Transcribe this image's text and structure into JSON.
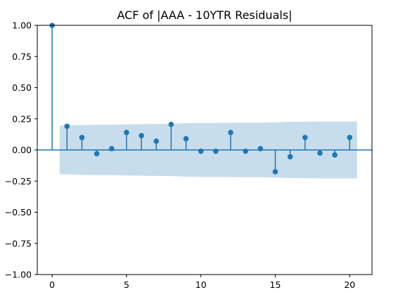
{
  "chart_data": {
    "type": "stem",
    "title": "ACF of |AAA - 10YTR Residuals|",
    "xlabel": "",
    "ylabel": "",
    "xlim": [
      -1,
      21.5
    ],
    "ylim": [
      -1.0,
      1.0
    ],
    "x_ticks": [
      0,
      5,
      10,
      15,
      20
    ],
    "y_ticks": [
      -1.0,
      -0.75,
      -0.5,
      -0.25,
      0.0,
      0.25,
      0.5,
      0.75,
      1.0
    ],
    "x_tick_labels": [
      "0",
      "5",
      "10",
      "15",
      "20"
    ],
    "y_tick_labels": [
      "−1.00",
      "−0.75",
      "−0.50",
      "−0.25",
      "0.00",
      "0.25",
      "0.50",
      "0.75",
      "1.00"
    ],
    "lags": [
      0,
      1,
      2,
      3,
      4,
      5,
      6,
      7,
      8,
      9,
      10,
      11,
      12,
      13,
      14,
      15,
      16,
      17,
      18,
      19,
      20
    ],
    "values": [
      1.0,
      0.19,
      0.1,
      -0.03,
      0.01,
      0.14,
      0.115,
      0.07,
      0.205,
      0.09,
      -0.01,
      -0.01,
      0.14,
      -0.01,
      0.01,
      -0.175,
      -0.055,
      0.1,
      -0.025,
      -0.04,
      0.1
    ],
    "confidence_band": {
      "lags": [
        0.5,
        1,
        2,
        3,
        4,
        5,
        6,
        7,
        8,
        9,
        10,
        11,
        12,
        13,
        14,
        15,
        16,
        17,
        18,
        19,
        20,
        20.5
      ],
      "upper": [
        0.195,
        0.196,
        0.2,
        0.202,
        0.202,
        0.205,
        0.207,
        0.208,
        0.21,
        0.215,
        0.216,
        0.216,
        0.218,
        0.219,
        0.219,
        0.221,
        0.226,
        0.227,
        0.228,
        0.228,
        0.228,
        0.228
      ],
      "lower": [
        -0.195,
        -0.196,
        -0.2,
        -0.202,
        -0.202,
        -0.205,
        -0.207,
        -0.208,
        -0.21,
        -0.215,
        -0.216,
        -0.216,
        -0.218,
        -0.219,
        -0.219,
        -0.221,
        -0.226,
        -0.227,
        -0.228,
        -0.228,
        -0.228,
        -0.228
      ]
    },
    "colors": {
      "series": "#1f77b4"
    },
    "grid": false,
    "legend": "none"
  }
}
